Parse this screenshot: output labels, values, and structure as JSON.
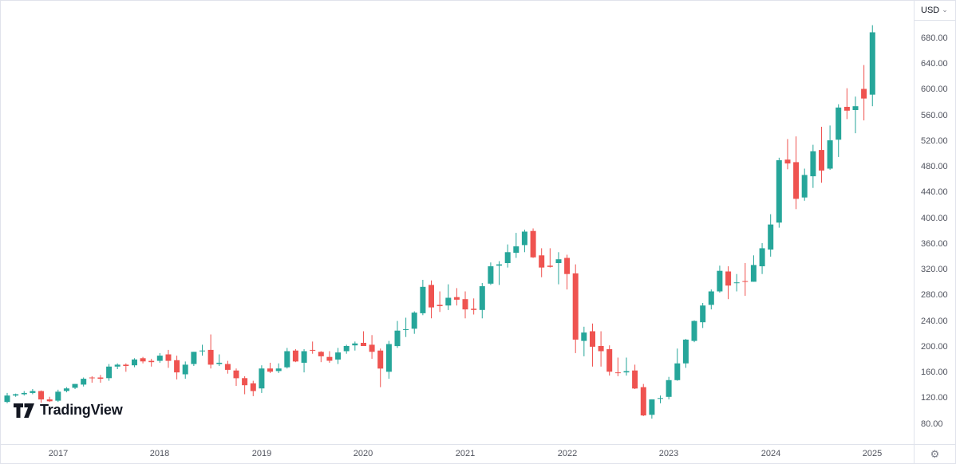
{
  "header": {
    "currency_label": "USD"
  },
  "icons": {
    "chevron_down": "⌄",
    "gear": "⚙"
  },
  "logo": {
    "text": "TradingView"
  },
  "colors": {
    "up": "#26a69a",
    "down": "#ef5350",
    "axis_border": "#e0e3eb",
    "axis_text": "#50535e",
    "background": "#ffffff"
  },
  "chart_data": {
    "type": "candlestick",
    "timeframe": "monthly",
    "currency": "USD",
    "legend_position": "none",
    "grid": false,
    "y_axis_labels": [
      "680.00",
      "640.00",
      "600.00",
      "560.00",
      "520.00",
      "480.00",
      "440.00",
      "400.00",
      "360.00",
      "320.00",
      "280.00",
      "240.00",
      "200.00",
      "160.00",
      "120.00",
      "80.00"
    ],
    "x_axis_labels": [
      "2017",
      "2018",
      "2019",
      "2020",
      "2021",
      "2022",
      "2023",
      "2024",
      "2025"
    ],
    "y_visible_range": {
      "price_at_top": 738,
      "price_at_bottom": 46
    },
    "ohlc_order": [
      "time",
      "open",
      "high",
      "low",
      "close"
    ],
    "candles": [
      [
        "2016-07",
        114,
        128,
        112,
        124
      ],
      [
        "2016-08",
        124,
        127,
        122,
        126
      ],
      [
        "2016-09",
        126,
        131,
        124,
        128
      ],
      [
        "2016-10",
        128,
        134,
        126,
        131
      ],
      [
        "2016-11",
        131,
        132,
        113,
        118
      ],
      [
        "2016-12",
        118,
        122,
        114,
        115
      ],
      [
        "2017-01",
        116,
        133,
        114,
        130
      ],
      [
        "2017-02",
        131,
        137,
        129,
        135
      ],
      [
        "2017-03",
        136,
        142,
        134,
        142
      ],
      [
        "2017-04",
        141,
        152,
        138,
        150
      ],
      [
        "2017-05",
        152,
        154,
        144,
        151
      ],
      [
        "2017-06",
        152,
        156,
        144,
        150
      ],
      [
        "2017-07",
        151,
        173,
        147,
        169
      ],
      [
        "2017-08",
        169,
        174,
        165,
        172
      ],
      [
        "2017-09",
        172,
        174,
        161,
        170
      ],
      [
        "2017-10",
        171,
        182,
        168,
        180
      ],
      [
        "2017-11",
        182,
        184,
        174,
        177
      ],
      [
        "2017-12",
        178,
        181,
        169,
        176
      ],
      [
        "2018-01",
        178,
        190,
        175,
        186
      ],
      [
        "2018-02",
        188,
        195,
        167,
        178
      ],
      [
        "2018-03",
        179,
        186,
        149,
        160
      ],
      [
        "2018-04",
        157,
        177,
        150,
        172
      ],
      [
        "2018-05",
        173,
        192,
        170,
        192
      ],
      [
        "2018-06",
        193,
        203,
        186,
        194
      ],
      [
        "2018-07",
        195,
        219,
        166,
        172
      ],
      [
        "2018-08",
        173,
        188,
        170,
        175
      ],
      [
        "2018-09",
        173,
        178,
        158,
        164
      ],
      [
        "2018-10",
        163,
        166,
        139,
        151
      ],
      [
        "2018-11",
        151,
        154,
        126,
        140
      ],
      [
        "2018-12",
        143,
        147,
        123,
        131
      ],
      [
        "2019-01",
        135,
        171,
        128,
        166
      ],
      [
        "2019-02",
        166,
        175,
        159,
        161
      ],
      [
        "2019-03",
        162,
        174,
        159,
        166
      ],
      [
        "2019-04",
        168,
        198,
        166,
        193
      ],
      [
        "2019-05",
        194,
        196,
        176,
        177
      ],
      [
        "2019-06",
        175,
        196,
        160,
        193
      ],
      [
        "2019-07",
        195,
        208,
        189,
        194
      ],
      [
        "2019-08",
        192,
        193,
        176,
        185
      ],
      [
        "2019-09",
        184,
        193,
        175,
        178
      ],
      [
        "2019-10",
        180,
        198,
        173,
        191
      ],
      [
        "2019-11",
        193,
        203,
        189,
        201
      ],
      [
        "2019-12",
        202,
        208,
        194,
        205
      ],
      [
        "2020-01",
        206,
        224,
        201,
        201
      ],
      [
        "2020-02",
        203,
        218,
        181,
        192
      ],
      [
        "2020-03",
        194,
        197,
        137,
        166
      ],
      [
        "2020-04",
        161,
        209,
        150,
        204
      ],
      [
        "2020-05",
        201,
        240,
        198,
        225
      ],
      [
        "2020-06",
        226,
        245,
        215,
        227
      ],
      [
        "2020-07",
        228,
        255,
        220,
        253
      ],
      [
        "2020-08",
        252,
        304,
        249,
        293
      ],
      [
        "2020-09",
        296,
        303,
        244,
        261
      ],
      [
        "2020-10",
        265,
        286,
        254,
        263
      ],
      [
        "2020-11",
        264,
        297,
        257,
        276
      ],
      [
        "2020-12",
        277,
        291,
        264,
        273
      ],
      [
        "2021-01",
        274,
        286,
        244,
        258
      ],
      [
        "2021-02",
        259,
        275,
        250,
        257
      ],
      [
        "2021-03",
        257,
        299,
        244,
        294
      ],
      [
        "2021-04",
        298,
        331,
        296,
        325
      ],
      [
        "2021-05",
        326,
        333,
        296,
        328
      ],
      [
        "2021-06",
        330,
        359,
        323,
        347
      ],
      [
        "2021-07",
        346,
        377,
        338,
        356
      ],
      [
        "2021-08",
        358,
        382,
        347,
        379
      ],
      [
        "2021-09",
        380,
        384,
        338,
        339
      ],
      [
        "2021-10",
        342,
        353,
        308,
        323
      ],
      [
        "2021-11",
        326,
        353,
        323,
        324
      ],
      [
        "2021-12",
        330,
        347,
        297,
        336
      ],
      [
        "2022-01",
        338,
        343,
        289,
        313
      ],
      [
        "2022-02",
        314,
        328,
        190,
        211
      ],
      [
        "2022-03",
        209,
        231,
        185,
        222
      ],
      [
        "2022-04",
        224,
        236,
        169,
        200
      ],
      [
        "2022-05",
        201,
        224,
        169,
        193
      ],
      [
        "2022-06",
        196,
        202,
        155,
        161
      ],
      [
        "2022-07",
        160,
        183,
        154,
        159
      ],
      [
        "2022-08",
        160,
        183,
        155,
        162
      ],
      [
        "2022-09",
        163,
        172,
        134,
        135
      ],
      [
        "2022-10",
        137,
        142,
        92,
        93
      ],
      [
        "2022-11",
        94,
        118,
        88,
        118
      ],
      [
        "2022-12",
        119,
        124,
        112,
        120
      ],
      [
        "2023-01",
        122,
        153,
        118,
        148
      ],
      [
        "2023-02",
        148,
        197,
        147,
        174
      ],
      [
        "2023-03",
        174,
        212,
        167,
        211
      ],
      [
        "2023-04",
        209,
        241,
        207,
        240
      ],
      [
        "2023-05",
        238,
        268,
        229,
        264
      ],
      [
        "2023-06",
        265,
        289,
        258,
        286
      ],
      [
        "2023-07",
        286,
        326,
        284,
        318
      ],
      [
        "2023-08",
        317,
        325,
        274,
        295
      ],
      [
        "2023-09",
        299,
        313,
        286,
        300
      ],
      [
        "2023-10",
        302,
        330,
        279,
        301
      ],
      [
        "2023-11",
        301,
        342,
        301,
        327
      ],
      [
        "2023-12",
        325,
        361,
        313,
        353
      ],
      [
        "2024-01",
        351,
        406,
        340,
        390
      ],
      [
        "2024-02",
        393,
        494,
        385,
        490
      ],
      [
        "2024-03",
        491,
        523,
        476,
        485
      ],
      [
        "2024-04",
        487,
        527,
        414,
        430
      ],
      [
        "2024-05",
        432,
        477,
        427,
        467
      ],
      [
        "2024-06",
        465,
        514,
        447,
        504
      ],
      [
        "2024-07",
        506,
        542,
        455,
        474
      ],
      [
        "2024-08",
        477,
        544,
        475,
        521
      ],
      [
        "2024-09",
        522,
        577,
        495,
        572
      ],
      [
        "2024-10",
        573,
        602,
        554,
        567
      ],
      [
        "2024-11",
        568,
        589,
        532,
        574
      ],
      [
        "2024-12",
        601,
        638,
        552,
        586
      ],
      [
        "2025-01",
        592,
        700,
        574,
        689
      ]
    ]
  }
}
